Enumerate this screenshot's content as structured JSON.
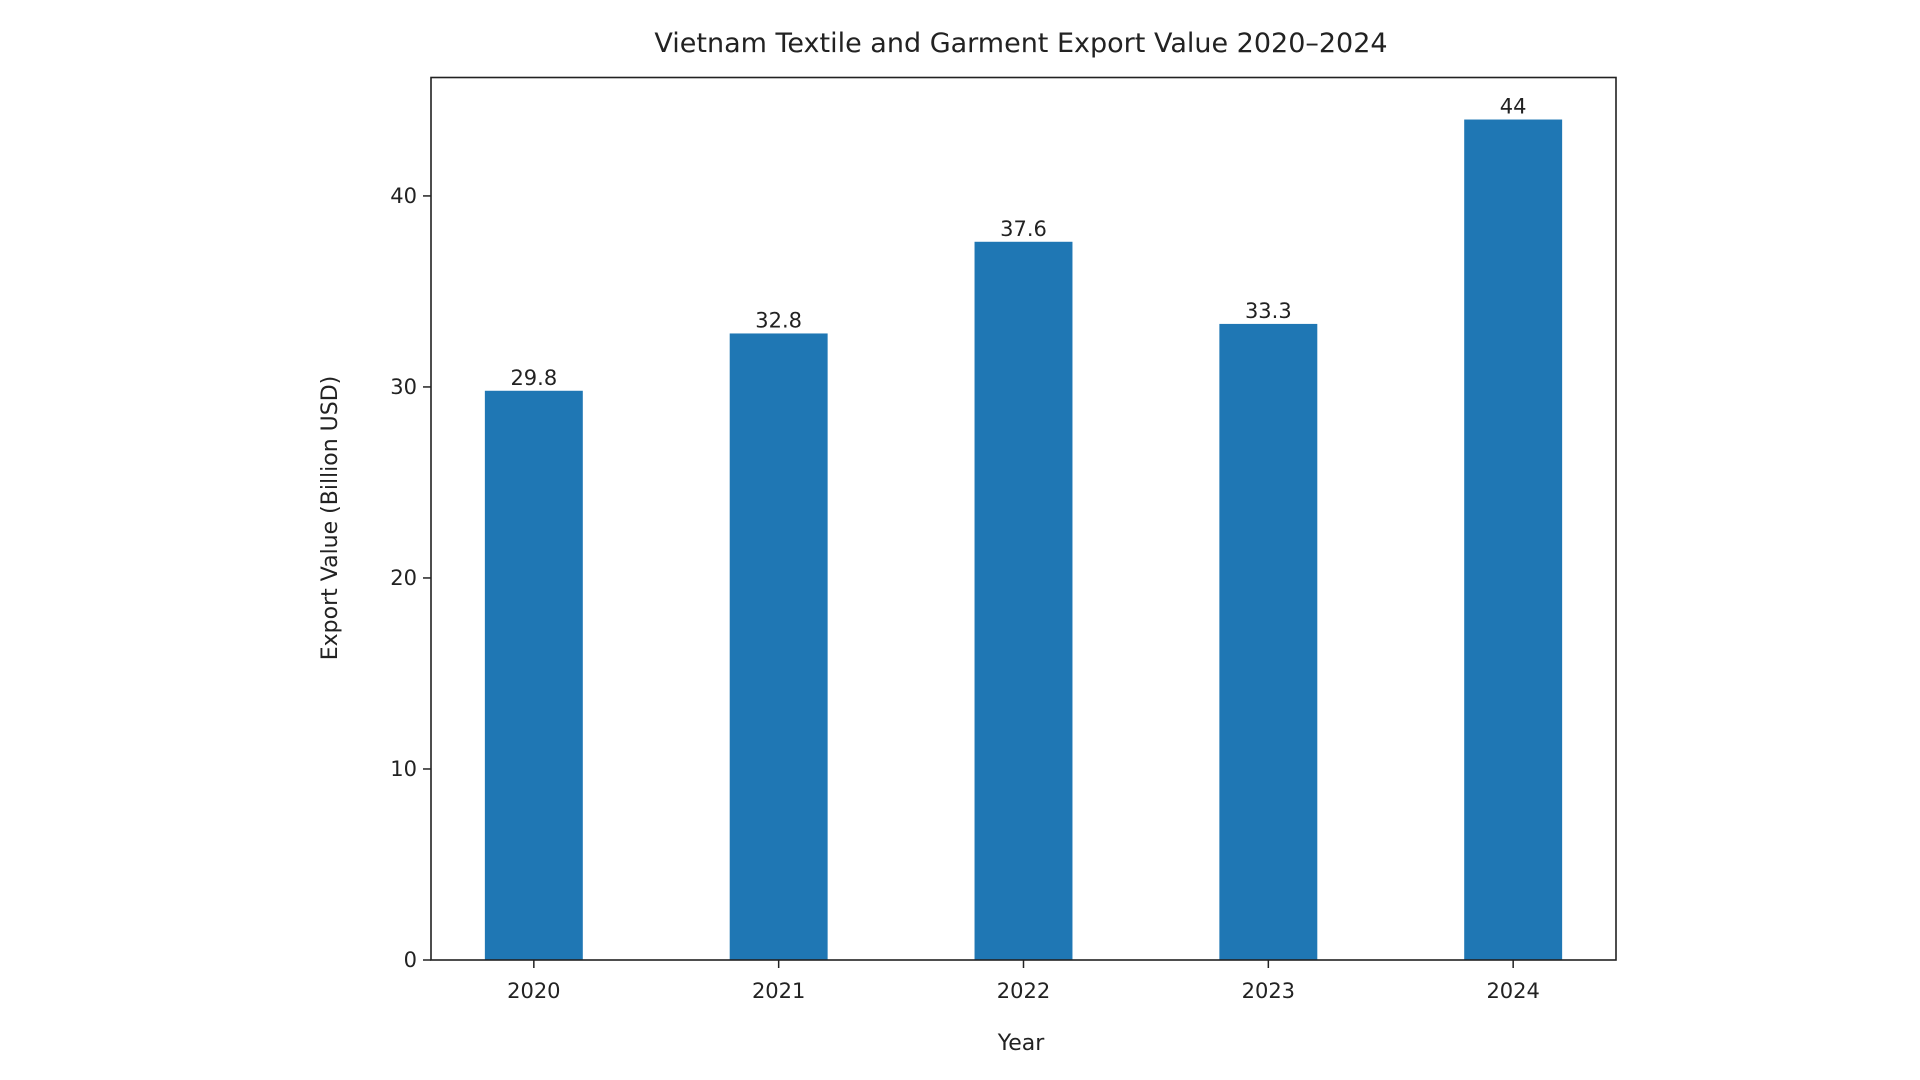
{
  "chart_data": {
    "type": "bar",
    "title": "Vietnam Textile and Garment Export Value 2020–2024",
    "xlabel": "Year",
    "ylabel": "Export Value (Billion USD)",
    "categories": [
      "2020",
      "2021",
      "2022",
      "2023",
      "2024"
    ],
    "values": [
      29.8,
      32.8,
      37.6,
      33.3,
      44
    ],
    "data_labels": [
      "29.8",
      "32.8",
      "37.6",
      "33.3",
      "44"
    ],
    "ylim": [
      0,
      46.2
    ],
    "yticks": [
      0,
      10,
      20,
      30,
      40
    ],
    "grid": false,
    "bar_color": "#1f77b4"
  }
}
